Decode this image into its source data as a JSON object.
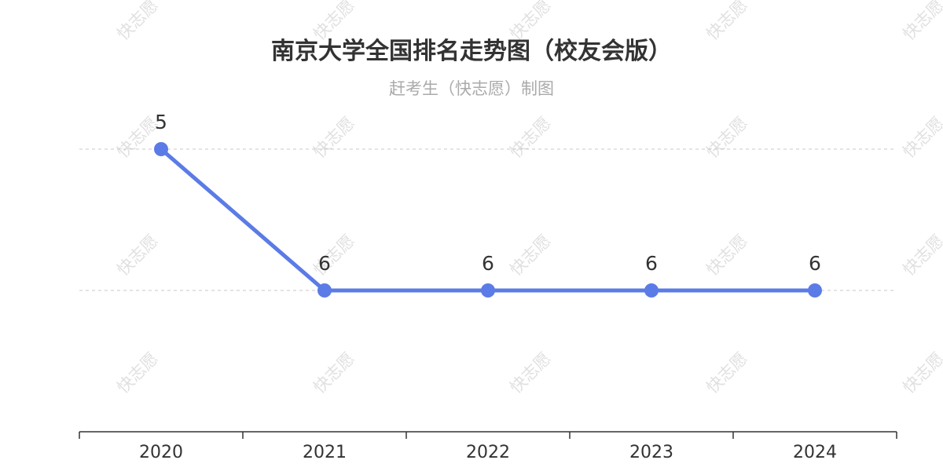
{
  "chart_data": {
    "type": "line",
    "title": "南京大学全国排名走势图（校友会版）",
    "subtitle": "赶考生（快志愿）制图",
    "x": [
      "2020",
      "2021",
      "2022",
      "2023",
      "2024"
    ],
    "series": [
      {
        "values": [
          5,
          6,
          6,
          6,
          6
        ],
        "color": "#5b7be6"
      }
    ],
    "y_axis": {
      "inverted": true,
      "gridlines_at": [
        5,
        6
      ]
    },
    "grid": true,
    "xlabel": "",
    "ylabel": ""
  },
  "watermark": {
    "text": "快志愿"
  }
}
